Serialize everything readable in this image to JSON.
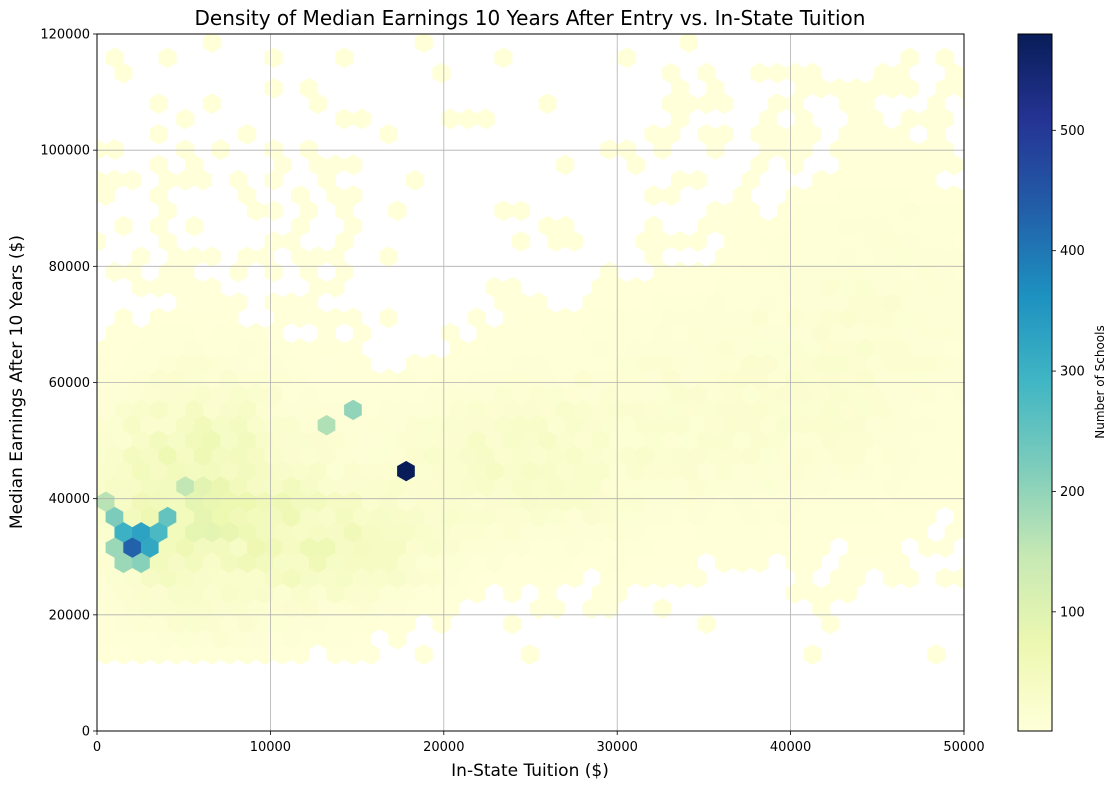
{
  "chart_data": {
    "type": "hexbin",
    "title": "Density of Median Earnings 10 Years After Entry vs. In-State Tuition",
    "xlabel": "In-State Tuition ($)",
    "ylabel": "Median Earnings After 10 Years ($)",
    "xlim": [
      0,
      50000
    ],
    "ylim": [
      0,
      120000
    ],
    "xticks": [
      0,
      10000,
      20000,
      30000,
      40000,
      50000
    ],
    "yticks": [
      0,
      20000,
      40000,
      60000,
      80000,
      100000,
      120000
    ],
    "grid": true,
    "colormap": "YlGnBu",
    "colorbar": {
      "label": "Number of Schools",
      "range": [
        1,
        580
      ],
      "ticks": [
        100,
        200,
        300,
        400,
        500
      ]
    },
    "notable_bins": [
      {
        "x": 2500,
        "y": 31000,
        "count": 430
      },
      {
        "x": 3000,
        "y": 33500,
        "count": 420
      },
      {
        "x": 2500,
        "y": 35500,
        "count": 330
      },
      {
        "x": 3500,
        "y": 35500,
        "count": 350
      },
      {
        "x": 3500,
        "y": 31000,
        "count": 320
      },
      {
        "x": 2000,
        "y": 33500,
        "count": 300
      },
      {
        "x": 4000,
        "y": 33500,
        "count": 280
      },
      {
        "x": 1500,
        "y": 36000,
        "count": 220
      },
      {
        "x": 1500,
        "y": 31000,
        "count": 190
      },
      {
        "x": 2000,
        "y": 28500,
        "count": 190
      },
      {
        "x": 3000,
        "y": 28500,
        "count": 210
      },
      {
        "x": 1000,
        "y": 38500,
        "count": 160
      },
      {
        "x": 4500,
        "y": 36000,
        "count": 250
      },
      {
        "x": 5500,
        "y": 41000,
        "count": 150
      },
      {
        "x": 14800,
        "y": 56000,
        "count": 200
      },
      {
        "x": 13200,
        "y": 53500,
        "count": 170
      },
      {
        "x": 18300,
        "y": 43500,
        "count": 580
      }
    ]
  }
}
